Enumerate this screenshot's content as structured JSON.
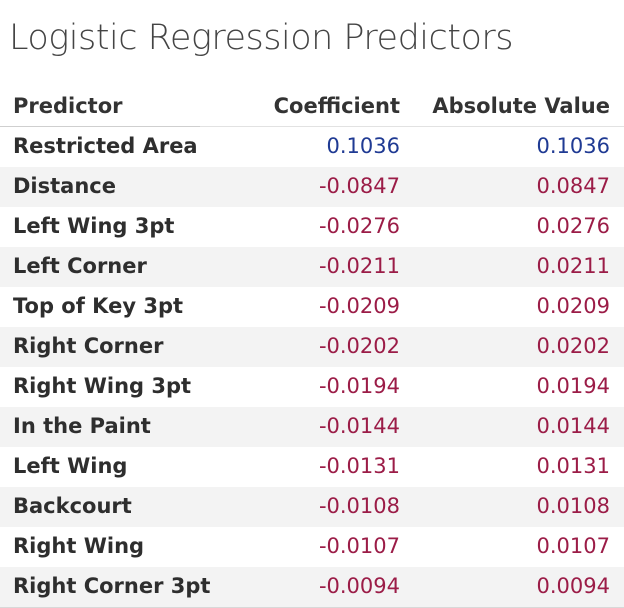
{
  "title": "Logistic Regression Predictors",
  "colors": {
    "positive": "#1f3a93",
    "negative": "#9b1c47",
    "row_stripe": "#f3f3f3"
  },
  "chart_data": {
    "type": "table",
    "title": "Logistic Regression Predictors",
    "columns": [
      "Predictor",
      "Coefficient",
      "Absolute Value"
    ],
    "rows": [
      {
        "predictor": "Restricted Area",
        "coefficient": "0.1036",
        "absolute": "0.1036"
      },
      {
        "predictor": "Distance",
        "coefficient": "-0.0847",
        "absolute": "0.0847"
      },
      {
        "predictor": "Left Wing 3pt",
        "coefficient": "-0.0276",
        "absolute": "0.0276"
      },
      {
        "predictor": "Left Corner",
        "coefficient": "-0.0211",
        "absolute": "0.0211"
      },
      {
        "predictor": "Top of Key 3pt",
        "coefficient": "-0.0209",
        "absolute": "0.0209"
      },
      {
        "predictor": "Right Corner",
        "coefficient": "-0.0202",
        "absolute": "0.0202"
      },
      {
        "predictor": "Right Wing 3pt",
        "coefficient": "-0.0194",
        "absolute": "0.0194"
      },
      {
        "predictor": "In the Paint",
        "coefficient": "-0.0144",
        "absolute": "0.0144"
      },
      {
        "predictor": "Left Wing",
        "coefficient": "-0.0131",
        "absolute": "0.0131"
      },
      {
        "predictor": "Backcourt",
        "coefficient": "-0.0108",
        "absolute": "0.0108"
      },
      {
        "predictor": "Right Wing",
        "coefficient": "-0.0107",
        "absolute": "0.0107"
      },
      {
        "predictor": "Right Corner 3pt",
        "coefficient": "-0.0094",
        "absolute": "0.0094"
      }
    ]
  }
}
